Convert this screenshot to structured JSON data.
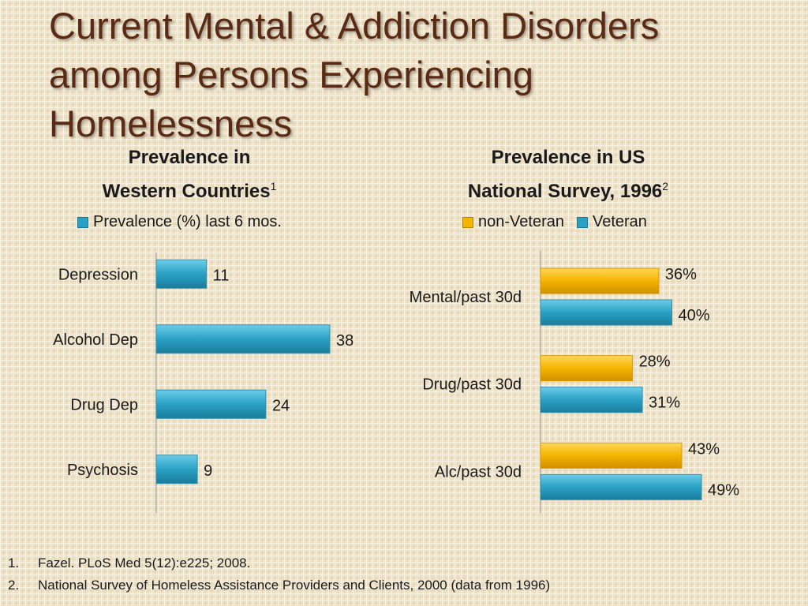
{
  "title_lines": [
    "Current Mental & Addiction Disorders",
    "among Persons Experiencing",
    "Homelessness"
  ],
  "colors": {
    "blue": "#2aa0c4",
    "gold": "#f4b400",
    "title": "#5a2a14"
  },
  "left": {
    "subtitle_line1": "Prevalence in",
    "subtitle_line2": "Western Countries",
    "subtitle_sup": "1",
    "legend": "Prevalence (%) last 6 mos."
  },
  "right": {
    "subtitle_line1": "Prevalence in US",
    "subtitle_line2": "National Survey, 1996",
    "subtitle_sup": "2",
    "legend_nonvet": "non-Veteran",
    "legend_vet": "Veteran"
  },
  "footnotes": [
    {
      "num": "1.",
      "text": "Fazel. PLoS Med 5(12):e225; 2008."
    },
    {
      "num": "2.",
      "text": "National Survey of Homeless Assistance Providers and Clients, 2000 (data from 1996)"
    }
  ],
  "chart_data": [
    {
      "type": "bar",
      "orientation": "horizontal",
      "title": "Prevalence in Western Countries",
      "categories": [
        "Depression",
        "Alcohol Dep",
        "Drug Dep",
        "Psychosis"
      ],
      "series": [
        {
          "name": "Prevalence (%) last 6 mos.",
          "values": [
            11,
            38,
            24,
            9
          ],
          "labels": [
            "11",
            "38",
            "24",
            "9"
          ]
        }
      ],
      "xlim": [
        0,
        38
      ],
      "grid": false,
      "legend_position": "top"
    },
    {
      "type": "bar",
      "orientation": "horizontal",
      "title": "Prevalence in US National Survey, 1996",
      "categories": [
        "Mental/past 30d",
        "Drug/past 30d",
        "Alc/past 30d"
      ],
      "series": [
        {
          "name": "non-Veteran",
          "values": [
            36,
            28,
            43
          ],
          "labels": [
            "36%",
            "28%",
            "43%"
          ]
        },
        {
          "name": "Veteran",
          "values": [
            40,
            31,
            49
          ],
          "labels": [
            "40%",
            "31%",
            "49%"
          ]
        }
      ],
      "xlim": [
        0,
        49
      ],
      "grid": false,
      "legend_position": "top"
    }
  ]
}
